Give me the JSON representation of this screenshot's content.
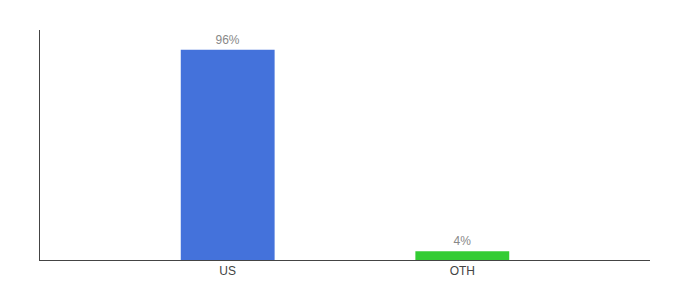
{
  "chart_data": {
    "type": "bar",
    "categories": [
      "US",
      "OTH"
    ],
    "values": [
      96,
      4
    ],
    "value_labels": [
      "96%",
      "4%"
    ],
    "data_labels": true,
    "colors": [
      "#4472db",
      "#33cc33"
    ],
    "ylim": [
      0,
      105
    ],
    "grid": false,
    "tick_labels": "x"
  }
}
